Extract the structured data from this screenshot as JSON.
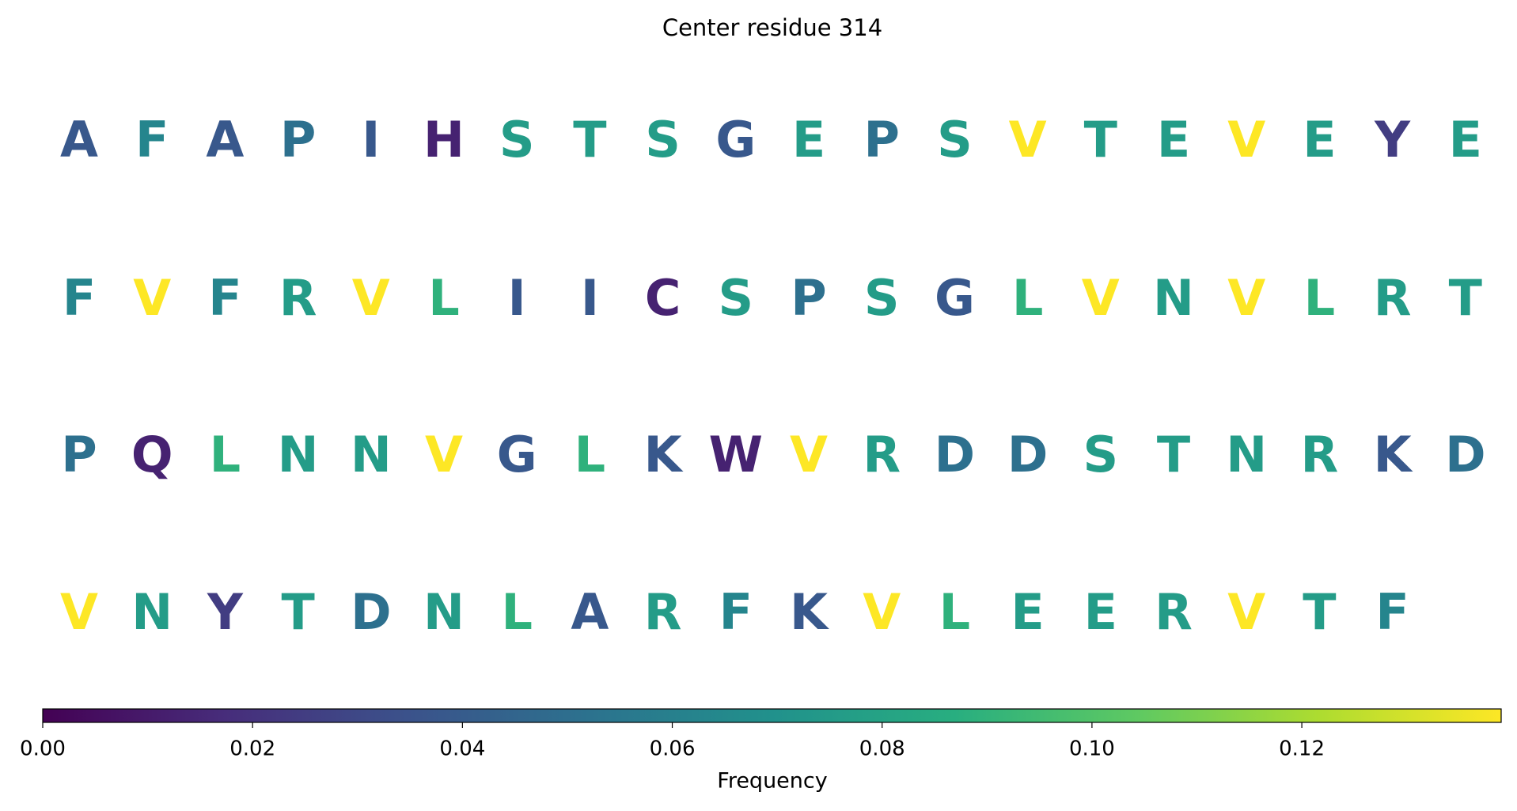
{
  "chart_data": {
    "type": "letter-grid",
    "title": "Center residue 314",
    "colorbar_label": "Frequency",
    "colormap": "viridis",
    "letters": [
      "A",
      "F",
      "A",
      "P",
      "I",
      "H",
      "S",
      "T",
      "S",
      "G",
      "E",
      "P",
      "S",
      "V",
      "T",
      "E",
      "V",
      "E",
      "Y",
      "E",
      "F",
      "V",
      "F",
      "R",
      "V",
      "L",
      "I",
      "I",
      "C",
      "S",
      "P",
      "S",
      "G",
      "L",
      "V",
      "N",
      "V",
      "L",
      "R",
      "T",
      "P",
      "Q",
      "L",
      "N",
      "N",
      "V",
      "G",
      "L",
      "K",
      "W",
      "V",
      "R",
      "D",
      "D",
      "S",
      "T",
      "N",
      "R",
      "K",
      "D",
      "V",
      "N",
      "Y",
      "T",
      "D",
      "N",
      "L",
      "A",
      "R",
      "F",
      "K",
      "V",
      "L",
      "E",
      "E",
      "R",
      "V",
      "T",
      "F"
    ],
    "values": [
      0.038,
      0.063,
      0.038,
      0.051,
      0.038,
      0.013,
      0.076,
      0.076,
      0.076,
      0.038,
      0.076,
      0.051,
      0.076,
      0.139,
      0.076,
      0.076,
      0.139,
      0.076,
      0.025,
      0.076,
      0.063,
      0.139,
      0.063,
      0.076,
      0.139,
      0.089,
      0.038,
      0.038,
      0.013,
      0.076,
      0.051,
      0.076,
      0.038,
      0.089,
      0.139,
      0.076,
      0.139,
      0.089,
      0.076,
      0.076,
      0.051,
      0.013,
      0.089,
      0.076,
      0.076,
      0.139,
      0.038,
      0.089,
      0.038,
      0.013,
      0.139,
      0.076,
      0.051,
      0.051,
      0.076,
      0.076,
      0.076,
      0.076,
      0.038,
      0.051,
      0.139,
      0.076,
      0.025,
      0.076,
      0.051,
      0.076,
      0.089,
      0.038,
      0.076,
      0.063,
      0.038,
      0.139,
      0.089,
      0.076,
      0.076,
      0.076,
      0.139,
      0.076,
      0.063
    ],
    "clim": [
      0,
      0.139
    ],
    "cticks": [
      {
        "value": 0,
        "label": "0.00"
      },
      {
        "value": 0.02,
        "label": "0.02"
      },
      {
        "value": 0.04,
        "label": "0.04"
      },
      {
        "value": 0.06,
        "label": "0.06"
      },
      {
        "value": 0.08,
        "label": "0.08"
      },
      {
        "value": 0.1,
        "label": "0.10"
      },
      {
        "value": 0.12,
        "label": "0.12"
      }
    ]
  }
}
